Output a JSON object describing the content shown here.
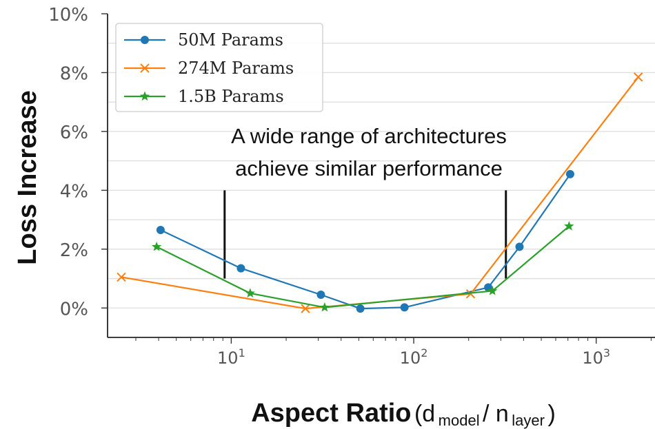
{
  "chart_data": {
    "type": "line",
    "x_scale": "log",
    "xlabel": "Aspect Ratio",
    "xlabel_detail": {
      "open": "(d",
      "sub1": "model",
      "mid": " / n",
      "sub2": "layer",
      "close": ")"
    },
    "ylabel": "Loss Increase",
    "xlim": [
      2.1,
      2100
    ],
    "ylim": [
      -1,
      10
    ],
    "y_ticks": [
      0,
      2,
      4,
      6,
      8,
      10
    ],
    "y_tick_labels": [
      "0%",
      "2%",
      "4%",
      "6%",
      "8%",
      "10%"
    ],
    "x_ticks": [
      {
        "value": 10,
        "base": "10",
        "exp": "1"
      },
      {
        "value": 100,
        "base": "10",
        "exp": "2"
      },
      {
        "value": 1000,
        "base": "10",
        "exp": "3"
      }
    ],
    "grid": "horizontal",
    "legend_position": "top-left",
    "series": [
      {
        "name": "50M Params",
        "color": "#1f77b4",
        "marker": "circle",
        "x": [
          4.1,
          11.3,
          31.0,
          51.0,
          89.0,
          256.0,
          380.0,
          720.0
        ],
        "y": [
          2.65,
          1.35,
          0.45,
          -0.02,
          0.02,
          0.7,
          2.08,
          4.55
        ]
      },
      {
        "name": "274M Params",
        "color": "#ff7f0e",
        "marker": "x",
        "x": [
          2.5,
          25.5,
          205.0,
          1700.0
        ],
        "y": [
          1.05,
          -0.02,
          0.48,
          7.85
        ]
      },
      {
        "name": "1.5B Params",
        "color": "#2ca02c",
        "marker": "star",
        "x": [
          3.9,
          12.7,
          32.5,
          270.0,
          710.0
        ],
        "y": [
          2.08,
          0.5,
          0.02,
          0.58,
          2.78
        ]
      }
    ],
    "annotation": {
      "lines": [
        "A wide range of architectures",
        "achieve similar performance"
      ],
      "range_markers": [
        {
          "x": 9.2,
          "y_from": 1.0,
          "y_to": 4.0
        },
        {
          "x": 320.0,
          "y_from": 1.0,
          "y_to": 4.0
        }
      ]
    }
  }
}
